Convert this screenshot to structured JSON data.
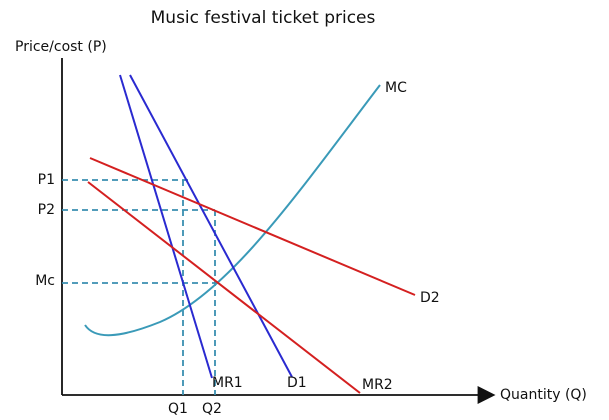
{
  "title": "Music festival ticket prices",
  "y_axis_label": "Price/cost (P)",
  "x_axis_label": "Quantity (Q)",
  "curves": [
    {
      "label": "MC"
    },
    {
      "label": "D1"
    },
    {
      "label": "MR1"
    },
    {
      "label": "D2"
    },
    {
      "label": "MR2"
    }
  ],
  "price_labels": [
    "P1",
    "P2",
    "Mc"
  ],
  "quantity_labels": [
    "Q1",
    "Q2"
  ]
}
